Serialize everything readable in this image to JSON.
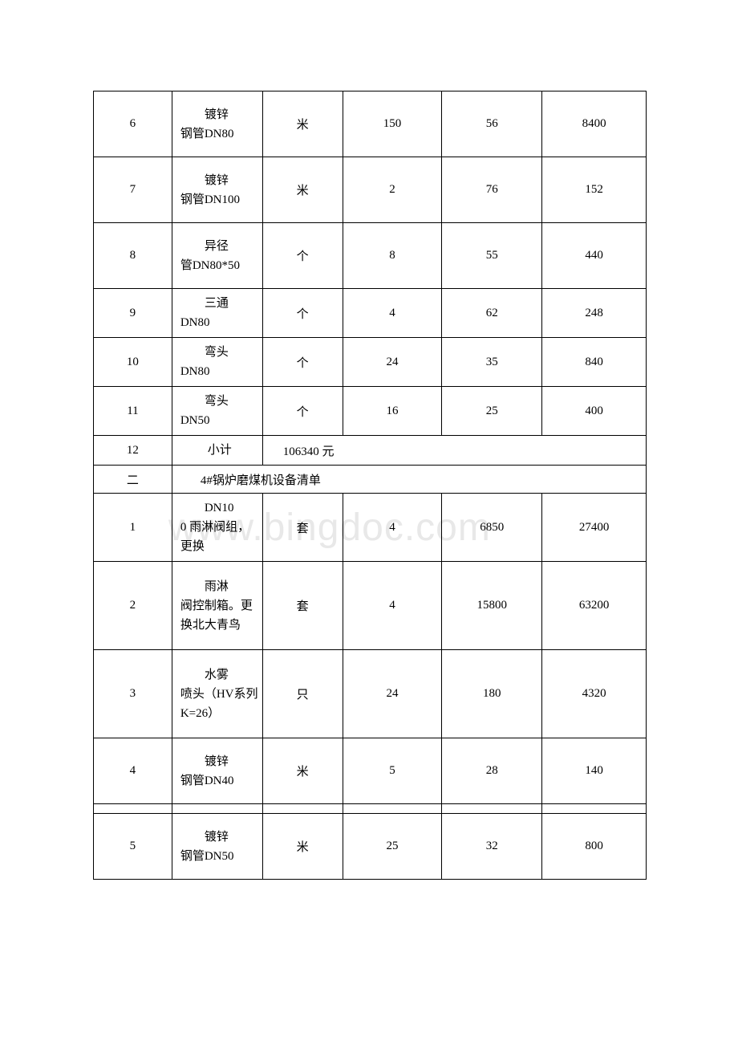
{
  "watermark": "www.bingdoc.com",
  "table": {
    "columns": {
      "widths": [
        98,
        113,
        100,
        124,
        125,
        130
      ],
      "text_color": "#000000",
      "border_color": "#000000",
      "font_size": 15,
      "background_color": "#ffffff"
    },
    "rows": [
      {
        "type": "data",
        "height": "row-h3",
        "num": "6",
        "name": "镀锌钢管DN80",
        "name_first": "镀锌",
        "name_rest": "钢管DN80",
        "unit": "米",
        "qty": "150",
        "price": "56",
        "total": "8400"
      },
      {
        "type": "data",
        "height": "row-h3",
        "num": "7",
        "name_first": "镀锌",
        "name_rest": "钢管DN100",
        "unit": "米",
        "qty": "2",
        "price": "76",
        "total": "152"
      },
      {
        "type": "data",
        "height": "row-h3",
        "num": "8",
        "name_first": "异径",
        "name_rest": "管DN80*50",
        "unit": "个",
        "qty": "8",
        "price": "55",
        "total": "440"
      },
      {
        "type": "data",
        "height": "row-h2",
        "num": "9",
        "name_first": "三通",
        "name_rest": "DN80",
        "unit": "个",
        "qty": "4",
        "price": "62",
        "total": "248"
      },
      {
        "type": "data",
        "height": "row-h2",
        "num": "10",
        "name_first": "弯头",
        "name_rest": "DN80",
        "unit": "个",
        "qty": "24",
        "price": "35",
        "total": "840"
      },
      {
        "type": "data",
        "height": "row-h2",
        "num": "11",
        "name_first": "弯头",
        "name_rest": "DN50",
        "unit": "个",
        "qty": "16",
        "price": "25",
        "total": "400"
      },
      {
        "type": "subtotal",
        "height": "row-subtotal",
        "num": "12",
        "label": "小计",
        "value": "106340 元"
      },
      {
        "type": "section",
        "height": "row-section",
        "num": "二",
        "title": "4#锅炉磨煤机设备清单"
      },
      {
        "type": "data",
        "height": "row-h3",
        "num": "1",
        "name_first": "DN10",
        "name_rest": "0 雨淋阀组，更换",
        "unit": "套",
        "qty": "4",
        "price": "6850",
        "total": "27400"
      },
      {
        "type": "data",
        "height": "row-h4",
        "num": "2",
        "name_first": "雨淋",
        "name_rest": "阀控制箱。更换北大青鸟",
        "unit": "套",
        "qty": "4",
        "price": "15800",
        "total": "63200"
      },
      {
        "type": "data",
        "height": "row-h4",
        "num": "3",
        "name_first": "水雾",
        "name_rest": "喷头（HV系列 K=26）",
        "unit": "只",
        "qty": "24",
        "price": "180",
        "total": "4320"
      },
      {
        "type": "data",
        "height": "row-h3",
        "num": "4",
        "name_first": "镀锌",
        "name_rest": "钢管DN40",
        "unit": "米",
        "qty": "5",
        "price": "28",
        "total": "140"
      },
      {
        "type": "thin",
        "height": "row-thin"
      },
      {
        "type": "data",
        "height": "row-h3",
        "num": "5",
        "name_first": "镀锌",
        "name_rest": "钢管DN50",
        "unit": "米",
        "qty": "25",
        "price": "32",
        "total": "800"
      }
    ]
  }
}
